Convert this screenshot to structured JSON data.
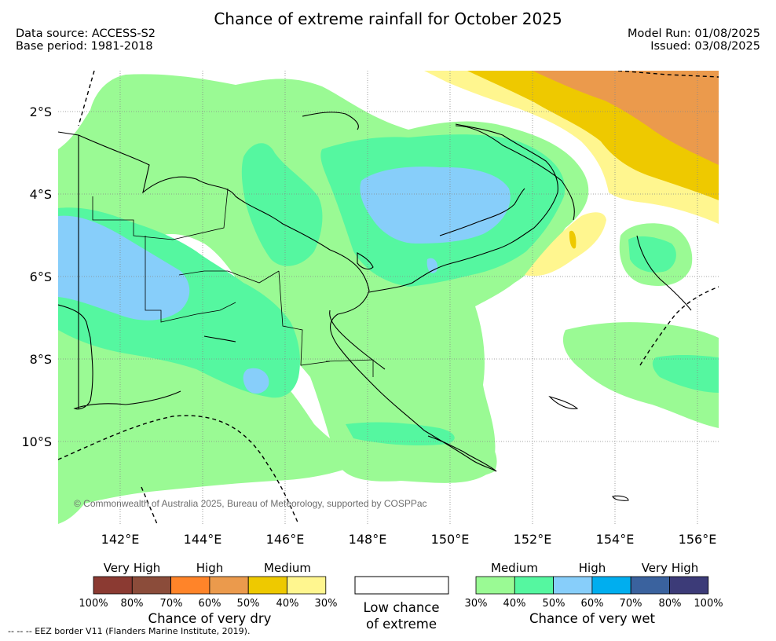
{
  "title": "Chance of extreme rainfall for October 2025",
  "data_source": "Data source: ACCESS-S2",
  "base_period": "Base period: 1981-2018",
  "model_run": "Model Run: 01/08/2025",
  "issued": "Issued: 03/08/2025",
  "map": {
    "lat_labels": [
      "2°S",
      "4°S",
      "6°S",
      "8°S",
      "10°S"
    ],
    "lon_labels": [
      "142°E",
      "144°E",
      "146°E",
      "148°E",
      "150°E",
      "152°E",
      "154°E",
      "156°E"
    ],
    "copyright": "© Commonwealth of Australia 2025, Bureau of Meteorology, supported by COSPPac"
  },
  "legend": {
    "dry": {
      "levels": [
        "Very High",
        "High",
        "Medium"
      ],
      "colors": [
        "#8b3a32",
        "#8b4c3a",
        "#ff8429",
        "#eb9a4c",
        "#eec900",
        "#fff68f"
      ],
      "ticks": [
        "100%",
        "80%",
        "70%",
        "60%",
        "50%",
        "40%",
        "30%"
      ],
      "title": "Chance of very dry"
    },
    "low": {
      "title_line1": "Low chance",
      "title_line2": "of extreme"
    },
    "wet": {
      "levels": [
        "Medium",
        "High",
        "Very High"
      ],
      "colors": [
        "#9afa94",
        "#55f7a0",
        "#87cefa",
        "#00aeef",
        "#3a629e",
        "#3c3b78"
      ],
      "ticks": [
        "30%",
        "40%",
        "50%",
        "60%",
        "70%",
        "80%",
        "100%"
      ],
      "title": "Chance of very wet"
    }
  },
  "footnote": "--  --  -- EEZ border V11 (Flanders Marine Institute, 2019)."
}
